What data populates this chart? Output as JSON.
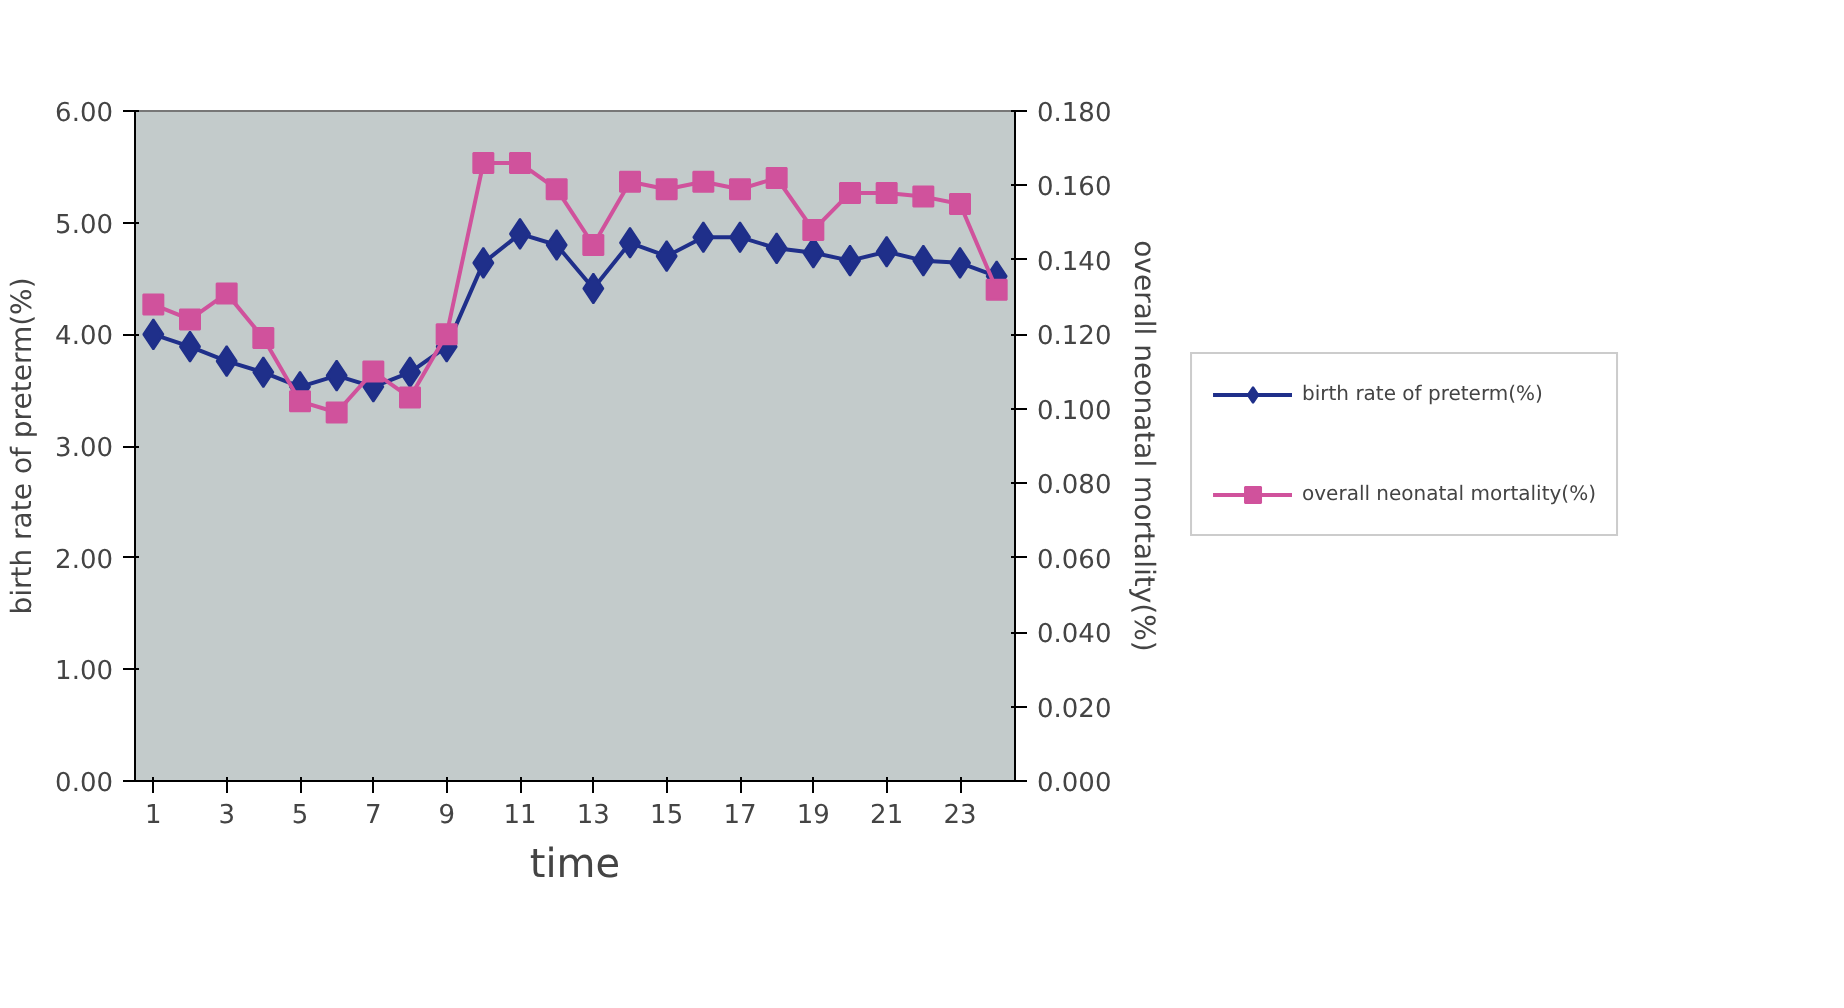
{
  "chart_data": {
    "type": "line",
    "xlabel": "time",
    "ylabel": "birth rate of preterm(%)",
    "y2label": "overall neonatal mortality(%)",
    "x": [
      1,
      2,
      3,
      4,
      5,
      6,
      7,
      8,
      9,
      10,
      11,
      12,
      13,
      14,
      15,
      16,
      17,
      18,
      19,
      20,
      21,
      22,
      23,
      24
    ],
    "xlim": [
      0.5,
      24.5
    ],
    "xticks": [
      1,
      3,
      5,
      7,
      9,
      11,
      13,
      15,
      17,
      19,
      21,
      23
    ],
    "ylim": [
      0,
      6
    ],
    "yticks": [
      {
        "value": 0,
        "label": "0.00"
      },
      {
        "value": 1,
        "label": "1.00"
      },
      {
        "value": 2,
        "label": "2.00"
      },
      {
        "value": 3,
        "label": "3.00"
      },
      {
        "value": 4,
        "label": "4.00"
      },
      {
        "value": 5,
        "label": "5.00"
      },
      {
        "value": 6,
        "label": "6.00"
      }
    ],
    "y2lim": [
      0,
      0.18
    ],
    "y2ticks": [
      {
        "value": 0,
        "label": "0.000"
      },
      {
        "value": 0.02,
        "label": "0.020"
      },
      {
        "value": 0.04,
        "label": "0.040"
      },
      {
        "value": 0.06,
        "label": "0.060"
      },
      {
        "value": 0.08,
        "label": "0.080"
      },
      {
        "value": 0.1,
        "label": "0.100"
      },
      {
        "value": 0.12,
        "label": "0.120"
      },
      {
        "value": 0.14,
        "label": "0.140"
      },
      {
        "value": 0.16,
        "label": "0.160"
      },
      {
        "value": 0.18,
        "label": "0.180"
      }
    ],
    "grid": false,
    "legend": "right",
    "series": [
      {
        "name": "birth rate of preterm(%)",
        "color": "#1f2f8a",
        "marker": "diamond",
        "values": [
          4.0,
          3.89,
          3.76,
          3.66,
          3.53,
          3.63,
          3.53,
          3.66,
          3.89,
          4.64,
          4.9,
          4.8,
          4.41,
          4.82,
          4.7,
          4.87,
          4.87,
          4.77,
          4.73,
          4.66,
          4.74,
          4.66,
          4.64,
          4.52
        ]
      },
      {
        "name": "overall neonatal mortality(%)",
        "color": "#d0529c",
        "marker": "square",
        "axis": "y2",
        "values": [
          0.128,
          0.124,
          0.131,
          0.119,
          0.102,
          0.099,
          0.11,
          0.103,
          0.12,
          0.166,
          0.166,
          0.159,
          0.144,
          0.161,
          0.159,
          0.161,
          0.159,
          0.162,
          0.148,
          0.158,
          0.158,
          0.157,
          0.155,
          0.132
        ]
      }
    ]
  }
}
